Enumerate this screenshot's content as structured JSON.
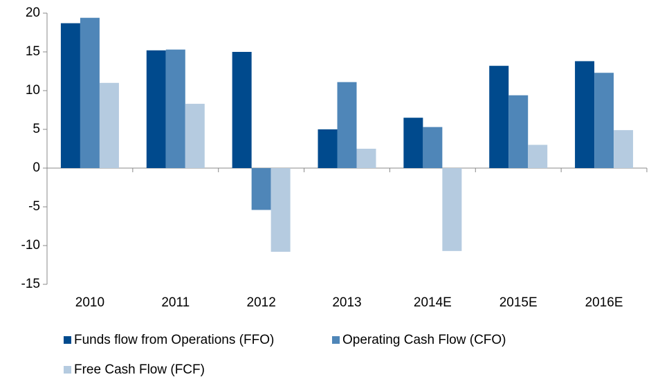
{
  "chart_data": {
    "type": "bar",
    "categories": [
      "2010",
      "2011",
      "2012",
      "2013",
      "2014E",
      "2015E",
      "2016E"
    ],
    "series": [
      {
        "name": "Funds flow from Operations (FFO)",
        "color": "#004a8d",
        "values": [
          18.7,
          15.2,
          15.0,
          5.0,
          6.5,
          13.2,
          13.8
        ]
      },
      {
        "name": "Operating Cash Flow (CFO)",
        "color": "#4f86b8",
        "values": [
          19.4,
          15.3,
          -5.4,
          11.1,
          5.3,
          9.4,
          12.3
        ]
      },
      {
        "name": "Free Cash Flow (FCF)",
        "color": "#b5cbe0",
        "values": [
          11.0,
          8.3,
          -10.8,
          2.5,
          -10.7,
          3.0,
          4.9
        ]
      }
    ],
    "ylim": [
      -15,
      20
    ],
    "yticks": [
      -15,
      -10,
      -5,
      0,
      5,
      10,
      15,
      20
    ],
    "grid": false,
    "legend": "bottom"
  }
}
